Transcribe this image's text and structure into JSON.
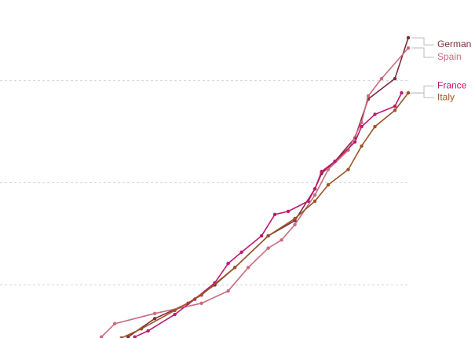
{
  "chart_data": {
    "type": "line",
    "xlim": [
      -1.2,
      70
    ],
    "ylim": [
      4.8,
      37.9
    ],
    "yticks": [
      10,
      20,
      30
    ],
    "grid": true,
    "series": [
      {
        "name": "German",
        "color": "#7b2d3a",
        "x": [
          18,
          22,
          27,
          31,
          34,
          39,
          43,
          46,
          47,
          49,
          52,
          54,
          58,
          60
        ],
        "values": [
          4.9,
          6.7,
          8.2,
          10,
          11.7,
          14.8,
          16.3,
          19.4,
          20.9,
          22.1,
          24.4,
          28.2,
          30.2,
          34.2
        ]
      },
      {
        "name": "Spain",
        "color": "#c96b7e",
        "x": [
          14,
          16,
          22,
          29,
          33,
          36,
          39,
          41,
          43,
          46,
          48,
          51,
          53,
          54,
          56,
          60
        ],
        "values": [
          4.9,
          6.2,
          7.2,
          8.2,
          9.4,
          11.7,
          13.6,
          14.4,
          15.9,
          18.8,
          21.3,
          23.2,
          25.9,
          28.5,
          30.2,
          33.2
        ]
      },
      {
        "name": "France",
        "color": "#c2186e",
        "x": [
          19,
          21,
          25,
          28,
          31,
          33,
          35,
          38,
          40,
          42,
          45,
          46,
          47,
          49,
          52,
          53,
          55,
          58,
          59
        ],
        "values": [
          4.9,
          5.5,
          7.1,
          8.6,
          10.2,
          12.1,
          13.2,
          14.8,
          16.9,
          17.2,
          18.2,
          19.4,
          21.1,
          22.1,
          24.0,
          25.5,
          26.7,
          27.5,
          28.8
        ]
      },
      {
        "name": "Italy",
        "color": "#9a5528",
        "x": [
          17,
          20,
          25,
          29,
          34,
          39,
          43,
          46,
          48,
          51,
          53,
          55,
          58,
          60
        ],
        "values": [
          4.8,
          5.7,
          7.5,
          9.0,
          11.7,
          14.8,
          16.5,
          18.2,
          19.8,
          21.3,
          23.6,
          25.5,
          27.1,
          28.8
        ]
      }
    ]
  }
}
